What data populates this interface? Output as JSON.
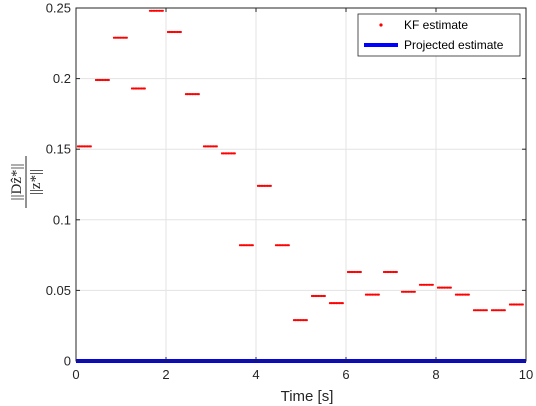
{
  "chart_data": {
    "type": "scatter",
    "xlabel": "Time [s]",
    "ylabel": {
      "numerator": "||Dẑ*||",
      "denominator": "||z*||"
    },
    "xlim": [
      0,
      10
    ],
    "ylim": [
      0,
      0.25
    ],
    "xticks": [
      0,
      2,
      4,
      6,
      8,
      10
    ],
    "yticks": [
      0,
      0.05,
      0.1,
      0.15,
      0.2,
      0.25
    ],
    "xtick_labels": [
      "0",
      "2",
      "4",
      "6",
      "8",
      "10"
    ],
    "ytick_labels": [
      "0",
      "0.05",
      "0.1",
      "0.15",
      "0.2",
      "0.25"
    ],
    "grid": true,
    "legend_position": "top-right",
    "series": [
      {
        "name": "KF estimate",
        "color": "#ff0000",
        "style": "points",
        "segments": [
          {
            "x0": 0.0,
            "x1": 0.4,
            "y": 0.152
          },
          {
            "x0": 0.4,
            "x1": 0.8,
            "y": 0.199
          },
          {
            "x0": 0.8,
            "x1": 1.2,
            "y": 0.229
          },
          {
            "x0": 1.2,
            "x1": 1.6,
            "y": 0.193
          },
          {
            "x0": 1.6,
            "x1": 2.0,
            "y": 0.248
          },
          {
            "x0": 2.0,
            "x1": 2.4,
            "y": 0.233
          },
          {
            "x0": 2.4,
            "x1": 2.8,
            "y": 0.189
          },
          {
            "x0": 2.8,
            "x1": 3.2,
            "y": 0.152
          },
          {
            "x0": 3.2,
            "x1": 3.6,
            "y": 0.147
          },
          {
            "x0": 3.6,
            "x1": 4.0,
            "y": 0.082
          },
          {
            "x0": 4.0,
            "x1": 4.4,
            "y": 0.124
          },
          {
            "x0": 4.4,
            "x1": 4.8,
            "y": 0.082
          },
          {
            "x0": 4.8,
            "x1": 5.2,
            "y": 0.029
          },
          {
            "x0": 5.2,
            "x1": 5.6,
            "y": 0.046
          },
          {
            "x0": 5.6,
            "x1": 6.0,
            "y": 0.041
          },
          {
            "x0": 6.0,
            "x1": 6.4,
            "y": 0.063
          },
          {
            "x0": 6.4,
            "x1": 6.8,
            "y": 0.047
          },
          {
            "x0": 6.8,
            "x1": 7.2,
            "y": 0.063
          },
          {
            "x0": 7.2,
            "x1": 7.6,
            "y": 0.049
          },
          {
            "x0": 7.6,
            "x1": 8.0,
            "y": 0.054
          },
          {
            "x0": 8.0,
            "x1": 8.4,
            "y": 0.052
          },
          {
            "x0": 8.4,
            "x1": 8.8,
            "y": 0.047
          },
          {
            "x0": 8.8,
            "x1": 9.2,
            "y": 0.036
          },
          {
            "x0": 9.2,
            "x1": 9.6,
            "y": 0.036
          },
          {
            "x0": 9.6,
            "x1": 10.0,
            "y": 0.04
          }
        ]
      },
      {
        "name": "Projected estimate",
        "color": "#0000ff",
        "style": "line",
        "x": [
          0,
          10
        ],
        "y": [
          0,
          0
        ]
      }
    ]
  }
}
